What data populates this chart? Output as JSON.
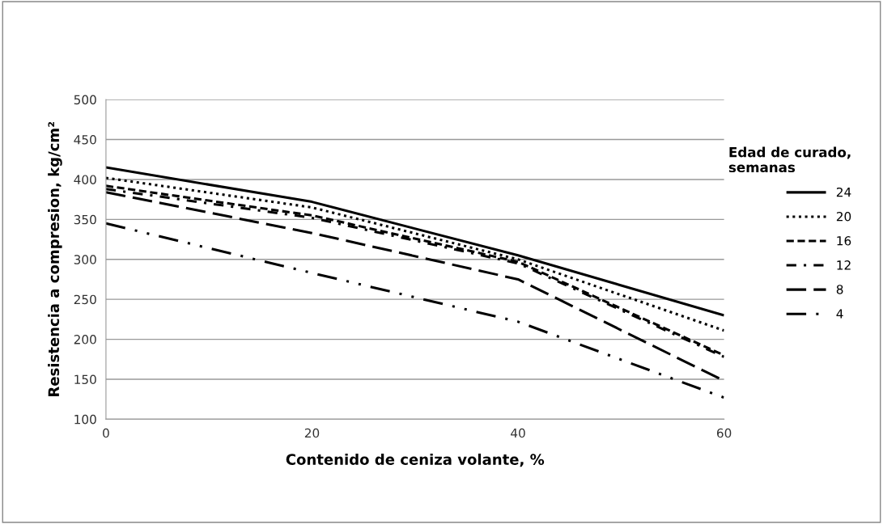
{
  "chart_data": {
    "type": "line",
    "xlabel": "Contenido de ceniza volante, %",
    "ylabel": "Resistencia a compresion, kg/cm²",
    "legend_title": "Edad de curado,\nsemanas",
    "x": [
      0,
      20,
      40,
      60
    ],
    "xlim": [
      0,
      60
    ],
    "xticks": [
      0,
      20,
      40,
      60
    ],
    "ylim": [
      100,
      500
    ],
    "yticks": [
      100,
      150,
      200,
      250,
      300,
      350,
      400,
      450,
      500
    ],
    "grid": "y",
    "legend": "right",
    "marker": "none",
    "series": [
      {
        "name": "24",
        "color": "#000000",
        "line_style": "solid",
        "values": [
          415,
          372,
          305,
          230
        ]
      },
      {
        "name": "20",
        "color": "#000000",
        "line_style": "dotted",
        "values": [
          402,
          365,
          300,
          211
        ]
      },
      {
        "name": "16",
        "color": "#000000",
        "line_style": "dashed",
        "values": [
          392,
          355,
          297,
          180
        ]
      },
      {
        "name": "12",
        "color": "#000000",
        "line_style": "dashdot",
        "values": [
          388,
          352,
          295,
          178
        ]
      },
      {
        "name": "8",
        "color": "#000000",
        "line_style": "longdash",
        "values": [
          384,
          333,
          275,
          148
        ]
      },
      {
        "name": "4",
        "color": "#000000",
        "line_style": "dashdotdot",
        "values": [
          345,
          283,
          222,
          127
        ]
      }
    ]
  }
}
